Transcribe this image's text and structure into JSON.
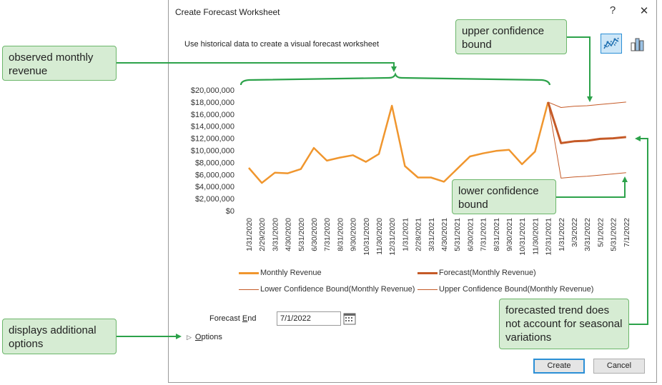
{
  "dialog": {
    "title": "Create Forecast Worksheet",
    "help_label": "?",
    "close_label": "✕",
    "subtitle": "Use historical data to create a visual forecast worksheet",
    "views": [
      {
        "name": "line-chart-view",
        "selected": true
      },
      {
        "name": "column-chart-view",
        "selected": false
      }
    ]
  },
  "chart_data": {
    "type": "line",
    "ylim": [
      0,
      20000000
    ],
    "y_ticks": [
      "$20,000,000",
      "$18,000,000",
      "$16,000,000",
      "$14,000,000",
      "$12,000,000",
      "$10,000,000",
      "$8,000,000",
      "$6,000,000",
      "$4,000,000",
      "$2,000,000",
      "$0"
    ],
    "x": [
      "1/31/2020",
      "2/29/2020",
      "3/31/2020",
      "4/30/2020",
      "5/31/2020",
      "6/30/2020",
      "7/31/2020",
      "8/31/2020",
      "9/30/2020",
      "10/31/2020",
      "11/30/2020",
      "12/31/2020",
      "1/31/2021",
      "2/28/2021",
      "3/31/2021",
      "4/30/2021",
      "5/31/2021",
      "6/30/2021",
      "7/31/2021",
      "8/31/2021",
      "9/30/2021",
      "10/31/2021",
      "11/30/2021",
      "12/31/2021",
      "1/31/2022",
      "3/3/2022",
      "3/31/2022",
      "5/1/2022",
      "5/31/2022",
      "7/1/2022"
    ],
    "series": [
      {
        "name": "Monthly Revenue",
        "color": "#f0962e",
        "points": [
          [
            "1/31/2020",
            7100000
          ],
          [
            "2/29/2020",
            4600000
          ],
          [
            "3/31/2020",
            6300000
          ],
          [
            "4/30/2020",
            6200000
          ],
          [
            "5/31/2020",
            6900000
          ],
          [
            "6/30/2020",
            10400000
          ],
          [
            "7/31/2020",
            8300000
          ],
          [
            "8/31/2020",
            8800000
          ],
          [
            "9/30/2020",
            9200000
          ],
          [
            "10/31/2020",
            8100000
          ],
          [
            "11/30/2020",
            9400000
          ],
          [
            "12/31/2020",
            17400000
          ],
          [
            "1/31/2021",
            7400000
          ],
          [
            "2/28/2021",
            5500000
          ],
          [
            "3/31/2021",
            5500000
          ],
          [
            "4/30/2021",
            4800000
          ],
          [
            "5/31/2021",
            6900000
          ],
          [
            "6/30/2021",
            9000000
          ],
          [
            "7/31/2021",
            9500000
          ],
          [
            "8/31/2021",
            9900000
          ],
          [
            "9/30/2021",
            10100000
          ],
          [
            "10/31/2021",
            7700000
          ],
          [
            "11/30/2021",
            9800000
          ],
          [
            "12/31/2021",
            18000000
          ]
        ]
      },
      {
        "name": "Forecast(Monthly Revenue)",
        "color": "#c55a27",
        "points": [
          [
            "12/31/2021",
            18000000
          ],
          [
            "1/31/2022",
            11200000
          ],
          [
            "3/3/2022",
            11500000
          ],
          [
            "3/31/2022",
            11600000
          ],
          [
            "5/1/2022",
            11900000
          ],
          [
            "5/31/2022",
            12000000
          ],
          [
            "7/1/2022",
            12200000
          ]
        ]
      },
      {
        "name": "Lower Confidence Bound(Monthly Revenue)",
        "color": "#c55a27",
        "points": [
          [
            "12/31/2021",
            18000000
          ],
          [
            "1/31/2022",
            5400000
          ],
          [
            "3/3/2022",
            5600000
          ],
          [
            "3/31/2022",
            5700000
          ],
          [
            "5/1/2022",
            5900000
          ],
          [
            "5/31/2022",
            6100000
          ],
          [
            "7/1/2022",
            6300000
          ]
        ]
      },
      {
        "name": "Upper Confidence Bound(Monthly Revenue)",
        "color": "#c55a27",
        "points": [
          [
            "12/31/2021",
            18000000
          ],
          [
            "1/31/2022",
            17100000
          ],
          [
            "3/3/2022",
            17300000
          ],
          [
            "3/31/2022",
            17400000
          ],
          [
            "5/1/2022",
            17600000
          ],
          [
            "5/31/2022",
            17800000
          ],
          [
            "7/1/2022",
            18000000
          ]
        ]
      }
    ]
  },
  "legend": [
    {
      "label": "Monthly Revenue",
      "color": "#f0962e",
      "style": "thick"
    },
    {
      "label": "Forecast(Monthly Revenue)",
      "color": "#c55a27",
      "style": "thick"
    },
    {
      "label": "Lower Confidence Bound(Monthly Revenue)",
      "color": "#c55a27",
      "style": "thin"
    },
    {
      "label": "Upper Confidence Bound(Monthly Revenue)",
      "color": "#c55a27",
      "style": "thin"
    }
  ],
  "forecast_end": {
    "label_pre": "Forecast ",
    "label_key": "E",
    "label_post": "nd",
    "value": "7/1/2022"
  },
  "options": {
    "label_key": "O",
    "label_rest": "ptions"
  },
  "buttons": {
    "create": "Create",
    "cancel": "Cancel"
  },
  "callouts": {
    "observed": "observed monthly revenue",
    "upper": "upper confidence bound",
    "lower": "lower confidence bound",
    "trend": "forecasted trend does not account for seasonal variations",
    "options": "displays additional options"
  },
  "colors": {
    "callout_fill": "#d6ecd3",
    "callout_border": "#6cb66b",
    "arrow": "#2ca24a",
    "accent": "#2b8fd6"
  }
}
